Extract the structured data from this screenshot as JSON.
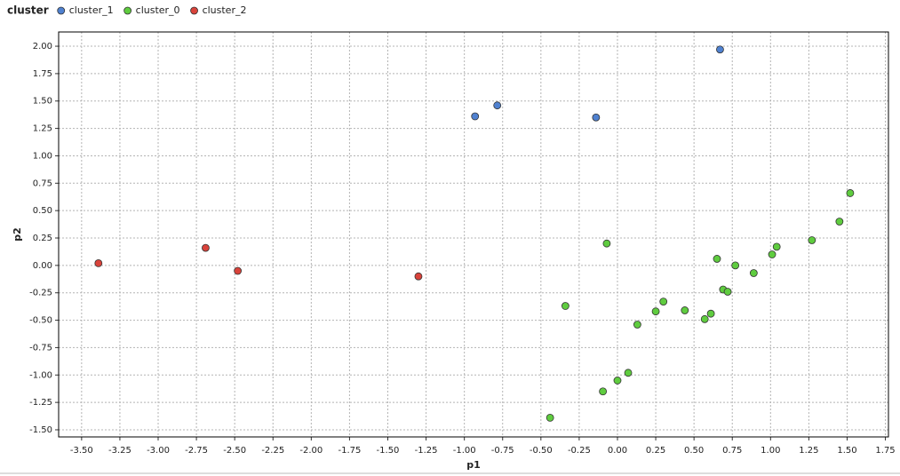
{
  "chart_data": {
    "type": "scatter",
    "legend_title": "cluster",
    "x_label": "p1",
    "y_label": "p2",
    "xlim": [
      -3.65,
      1.77
    ],
    "ylim": [
      -1.565,
      2.13
    ],
    "xticks": [
      {
        "value": -3.5,
        "label": "-3.50"
      },
      {
        "value": -3.25,
        "label": "-3.25"
      },
      {
        "value": -3,
        "label": "-3.00"
      },
      {
        "value": -2.75,
        "label": "-2.75"
      },
      {
        "value": -2.5,
        "label": "-2.50"
      },
      {
        "value": -2.25,
        "label": "-2.25"
      },
      {
        "value": -2,
        "label": "-2.00"
      },
      {
        "value": -1.75,
        "label": "-1.75"
      },
      {
        "value": -1.5,
        "label": "-1.50"
      },
      {
        "value": -1.25,
        "label": "-1.25"
      },
      {
        "value": -1,
        "label": "-1.00"
      },
      {
        "value": -0.75,
        "label": "-0.75"
      },
      {
        "value": -0.5,
        "label": "-0.50"
      },
      {
        "value": -0.25,
        "label": "-0.25"
      },
      {
        "value": 0,
        "label": "0.00"
      },
      {
        "value": 0.25,
        "label": "0.25"
      },
      {
        "value": 0.5,
        "label": "0.50"
      },
      {
        "value": 0.75,
        "label": "0.75"
      },
      {
        "value": 1,
        "label": "1.00"
      },
      {
        "value": 1.25,
        "label": "1.25"
      },
      {
        "value": 1.5,
        "label": "1.50"
      },
      {
        "value": 1.75,
        "label": "1.75"
      }
    ],
    "yticks": [
      {
        "value": -1.5,
        "label": "-1.50"
      },
      {
        "value": -1.25,
        "label": "-1.25"
      },
      {
        "value": -1,
        "label": "-1.00"
      },
      {
        "value": -0.75,
        "label": "-0.75"
      },
      {
        "value": -0.5,
        "label": "-0.50"
      },
      {
        "value": -0.25,
        "label": "-0.25"
      },
      {
        "value": 0,
        "label": "0.00"
      },
      {
        "value": 0.25,
        "label": "0.25"
      },
      {
        "value": 0.5,
        "label": "0.50"
      },
      {
        "value": 0.75,
        "label": "0.75"
      },
      {
        "value": 1,
        "label": "1.00"
      },
      {
        "value": 1.25,
        "label": "1.25"
      },
      {
        "value": 1.5,
        "label": "1.50"
      },
      {
        "value": 1.75,
        "label": "1.75"
      },
      {
        "value": 2,
        "label": "2.00"
      }
    ],
    "grid": true,
    "series": [
      {
        "name": "cluster_1",
        "color": "#4f81d0",
        "x": [
          -0.93,
          -0.785,
          -0.14,
          0.67
        ],
        "values": [
          1.36,
          1.46,
          1.35,
          1.97
        ]
      },
      {
        "name": "cluster_0",
        "color": "#5fcc3f",
        "x": [
          -0.44,
          -0.34,
          -0.095,
          -0.07,
          0.0,
          0.07,
          0.13,
          0.25,
          0.3,
          0.44,
          0.57,
          0.61,
          0.65,
          0.69,
          0.72,
          0.77,
          0.89,
          1.01,
          1.04,
          1.27,
          1.45,
          1.52
        ],
        "values": [
          -1.39,
          -0.37,
          -1.15,
          0.2,
          -1.05,
          -0.98,
          -0.54,
          -0.42,
          -0.33,
          -0.41,
          -0.49,
          -0.44,
          0.06,
          -0.22,
          -0.24,
          0.0,
          -0.07,
          0.1,
          0.17,
          0.23,
          0.4,
          0.66
        ]
      },
      {
        "name": "cluster_2",
        "color": "#d9433b",
        "x": [
          -3.39,
          -2.69,
          -2.48,
          -1.3
        ],
        "values": [
          0.02,
          0.16,
          -0.05,
          -0.1
        ]
      }
    ]
  }
}
